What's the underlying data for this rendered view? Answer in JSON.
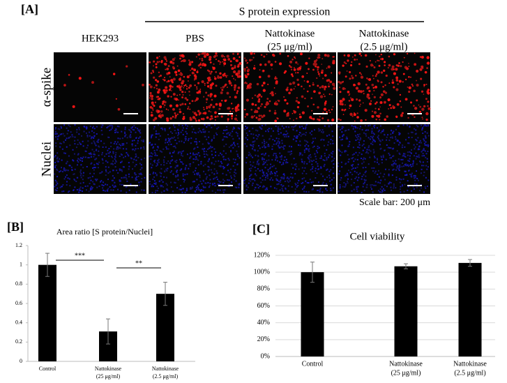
{
  "panel_a": {
    "label": "[A]",
    "header": "S protein expression",
    "columns": [
      [
        "HEK293"
      ],
      [
        "PBS"
      ],
      [
        "Nattokinase",
        "(25 μg/ml)"
      ],
      [
        "Nattokinase",
        "(2.5 μg/ml)"
      ]
    ],
    "rows": [
      "α-spike",
      "Nuclei"
    ],
    "scale_note": "Scale bar: 200 μm"
  },
  "chart_data": [
    {
      "type": "bar",
      "panel_label": "[B]",
      "title": "Area ratio [S protein/Nuclei]",
      "categories": [
        [
          "Control"
        ],
        [
          "Nattokinase",
          "(25 μg/ml)"
        ],
        [
          "Nattokinase",
          "(2.5 μg/ml)"
        ]
      ],
      "values": [
        1.0,
        0.31,
        0.7
      ],
      "errors": [
        0.12,
        0.13,
        0.12
      ],
      "color": "#000000",
      "ylim": [
        0,
        1.2
      ],
      "yticks": [
        0,
        0.2,
        0.4,
        0.6,
        0.8,
        1,
        1.2
      ],
      "grid": false,
      "annotations": [
        "***",
        "**"
      ]
    },
    {
      "type": "bar",
      "panel_label": "[C]",
      "title": "Cell viability",
      "categories": [
        [
          "Control"
        ],
        [
          "Nattokinase",
          "(25 μg/ml)"
        ],
        [
          "Nattokinase",
          "(2.5 μg/ml)"
        ]
      ],
      "values": [
        100,
        107,
        111
      ],
      "errors": [
        12,
        3,
        4
      ],
      "color": "#000000",
      "ylim": [
        0,
        120
      ],
      "yticks": [
        {
          "value": 0,
          "label": "0%"
        },
        {
          "value": 20,
          "label": "20%"
        },
        {
          "value": 40,
          "label": "40%"
        },
        {
          "value": 60,
          "label": "60%"
        },
        {
          "value": 80,
          "label": "80%"
        },
        {
          "value": 100,
          "label": "100%"
        },
        {
          "value": 120,
          "label": "120%"
        }
      ],
      "grid": true
    }
  ]
}
